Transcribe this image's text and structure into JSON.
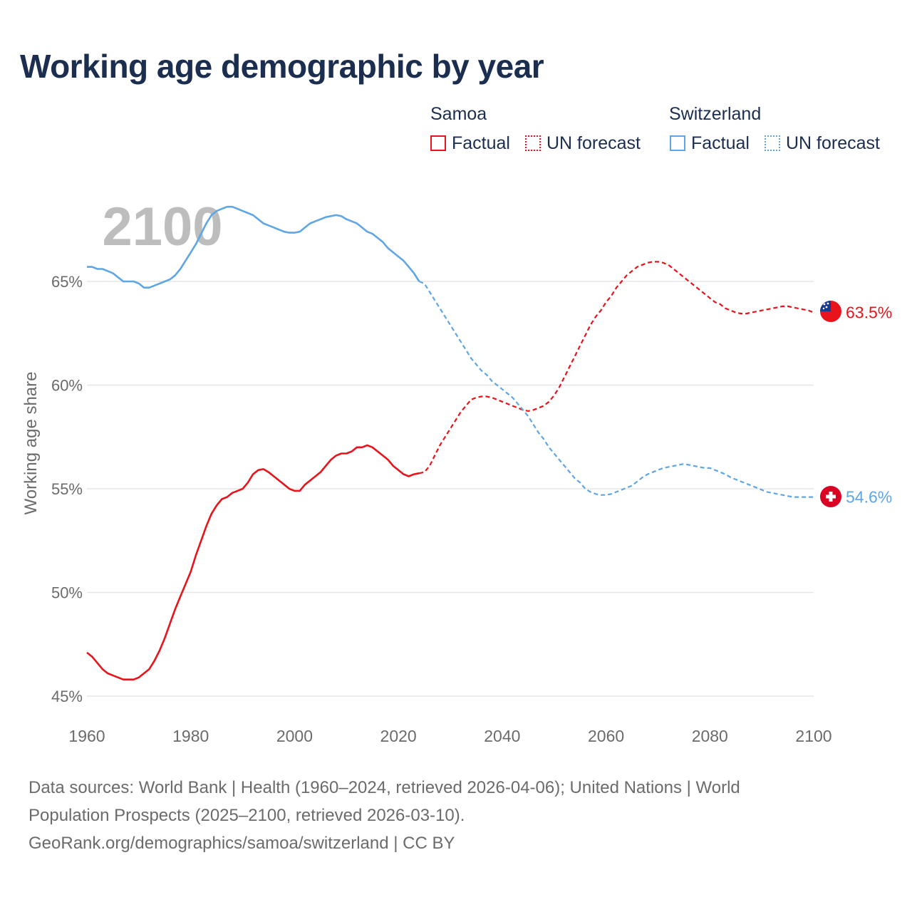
{
  "title": "Working age demographic by year",
  "legend": {
    "groups": [
      {
        "name": "Samoa",
        "color": "#e8141c",
        "items": [
          {
            "label": "Factual",
            "style": "solid"
          },
          {
            "label": "UN forecast",
            "style": "dotted"
          }
        ]
      },
      {
        "name": "Switzerland",
        "color": "#5fa6e4",
        "items": [
          {
            "label": "Factual",
            "style": "solid"
          },
          {
            "label": "UN forecast",
            "style": "dotted"
          }
        ]
      }
    ]
  },
  "year_label": "2100",
  "footer": {
    "line1": "Data sources: World Bank | Health (1960–2024, retrieved 2026-04-06); United Nations | World",
    "line2": "Population Prospects (2025–2100, retrieved 2026-03-10).",
    "line3": "GeoRank.org/demographics/samoa/switzerland | CC BY"
  },
  "chart_data": {
    "type": "line",
    "title": "Working age demographic by year",
    "xlabel": "",
    "ylabel": "Working age share",
    "xlim": [
      1960,
      2100
    ],
    "ylim": [
      45,
      70
    ],
    "x_ticks": [
      "1960",
      "1980",
      "2000",
      "2020",
      "2040",
      "2060",
      "2080",
      "2100"
    ],
    "y_ticks": [
      {
        "value": 45,
        "label": "45%"
      },
      {
        "value": 50,
        "label": "50%"
      },
      {
        "value": 55,
        "label": "55%"
      },
      {
        "value": 60,
        "label": "60%"
      },
      {
        "value": 65,
        "label": "65%"
      }
    ],
    "forecast_start": 2024,
    "series": [
      {
        "name": "Samoa",
        "color": "#e8141c",
        "end_label": "63.5%",
        "flag": "samoa-flag-icon",
        "points": [
          [
            1960,
            47.1
          ],
          [
            1961,
            46.9
          ],
          [
            1962,
            46.6
          ],
          [
            1963,
            46.3
          ],
          [
            1964,
            46.1
          ],
          [
            1965,
            46.0
          ],
          [
            1966,
            45.9
          ],
          [
            1967,
            45.8
          ],
          [
            1968,
            45.8
          ],
          [
            1969,
            45.8
          ],
          [
            1970,
            45.9
          ],
          [
            1971,
            46.1
          ],
          [
            1972,
            46.3
          ],
          [
            1973,
            46.7
          ],
          [
            1974,
            47.2
          ],
          [
            1975,
            47.8
          ],
          [
            1976,
            48.5
          ],
          [
            1977,
            49.2
          ],
          [
            1978,
            49.8
          ],
          [
            1979,
            50.4
          ],
          [
            1980,
            51.0
          ],
          [
            1981,
            51.8
          ],
          [
            1982,
            52.5
          ],
          [
            1983,
            53.2
          ],
          [
            1984,
            53.8
          ],
          [
            1985,
            54.2
          ],
          [
            1986,
            54.5
          ],
          [
            1987,
            54.6
          ],
          [
            1988,
            54.8
          ],
          [
            1989,
            54.9
          ],
          [
            1990,
            55.0
          ],
          [
            1991,
            55.3
          ],
          [
            1992,
            55.7
          ],
          [
            1993,
            55.9
          ],
          [
            1994,
            55.95
          ],
          [
            1995,
            55.8
          ],
          [
            1996,
            55.6
          ],
          [
            1997,
            55.4
          ],
          [
            1998,
            55.2
          ],
          [
            1999,
            55.0
          ],
          [
            2000,
            54.9
          ],
          [
            2001,
            54.9
          ],
          [
            2002,
            55.2
          ],
          [
            2003,
            55.4
          ],
          [
            2004,
            55.6
          ],
          [
            2005,
            55.8
          ],
          [
            2006,
            56.1
          ],
          [
            2007,
            56.4
          ],
          [
            2008,
            56.6
          ],
          [
            2009,
            56.7
          ],
          [
            2010,
            56.7
          ],
          [
            2011,
            56.8
          ],
          [
            2012,
            57.0
          ],
          [
            2013,
            57.0
          ],
          [
            2014,
            57.1
          ],
          [
            2015,
            57.0
          ],
          [
            2016,
            56.8
          ],
          [
            2017,
            56.6
          ],
          [
            2018,
            56.4
          ],
          [
            2019,
            56.1
          ],
          [
            2020,
            55.9
          ],
          [
            2021,
            55.7
          ],
          [
            2022,
            55.6
          ],
          [
            2023,
            55.7
          ],
          [
            2024,
            55.75
          ],
          [
            2025,
            55.8
          ],
          [
            2026,
            56.1
          ],
          [
            2027,
            56.6
          ],
          [
            2028,
            57.1
          ],
          [
            2029,
            57.5
          ],
          [
            2030,
            57.9
          ],
          [
            2031,
            58.3
          ],
          [
            2032,
            58.7
          ],
          [
            2033,
            59.0
          ],
          [
            2034,
            59.3
          ],
          [
            2035,
            59.4
          ],
          [
            2036,
            59.45
          ],
          [
            2037,
            59.45
          ],
          [
            2038,
            59.4
          ],
          [
            2039,
            59.3
          ],
          [
            2040,
            59.2
          ],
          [
            2041,
            59.1
          ],
          [
            2042,
            59.0
          ],
          [
            2043,
            58.9
          ],
          [
            2044,
            58.8
          ],
          [
            2045,
            58.75
          ],
          [
            2046,
            58.8
          ],
          [
            2047,
            58.9
          ],
          [
            2048,
            59.0
          ],
          [
            2049,
            59.2
          ],
          [
            2050,
            59.5
          ],
          [
            2051,
            59.9
          ],
          [
            2052,
            60.4
          ],
          [
            2053,
            60.9
          ],
          [
            2054,
            61.4
          ],
          [
            2055,
            61.9
          ],
          [
            2056,
            62.4
          ],
          [
            2057,
            62.9
          ],
          [
            2058,
            63.3
          ],
          [
            2059,
            63.6
          ],
          [
            2060,
            64.0
          ],
          [
            2061,
            64.3
          ],
          [
            2062,
            64.7
          ],
          [
            2063,
            65.0
          ],
          [
            2064,
            65.3
          ],
          [
            2065,
            65.5
          ],
          [
            2066,
            65.7
          ],
          [
            2067,
            65.8
          ],
          [
            2068,
            65.9
          ],
          [
            2069,
            65.95
          ],
          [
            2070,
            65.95
          ],
          [
            2071,
            65.9
          ],
          [
            2072,
            65.8
          ],
          [
            2073,
            65.6
          ],
          [
            2074,
            65.4
          ],
          [
            2075,
            65.2
          ],
          [
            2076,
            65.0
          ],
          [
            2077,
            64.8
          ],
          [
            2078,
            64.6
          ],
          [
            2079,
            64.4
          ],
          [
            2080,
            64.2
          ],
          [
            2081,
            64.0
          ],
          [
            2082,
            63.9
          ],
          [
            2083,
            63.7
          ],
          [
            2084,
            63.6
          ],
          [
            2085,
            63.5
          ],
          [
            2086,
            63.45
          ],
          [
            2087,
            63.45
          ],
          [
            2088,
            63.5
          ],
          [
            2089,
            63.55
          ],
          [
            2090,
            63.6
          ],
          [
            2091,
            63.65
          ],
          [
            2092,
            63.7
          ],
          [
            2093,
            63.75
          ],
          [
            2094,
            63.8
          ],
          [
            2095,
            63.8
          ],
          [
            2096,
            63.75
          ],
          [
            2097,
            63.7
          ],
          [
            2098,
            63.65
          ],
          [
            2099,
            63.6
          ],
          [
            2100,
            63.5
          ]
        ]
      },
      {
        "name": "Switzerland",
        "color": "#5fa6e4",
        "end_label": "54.6%",
        "flag": "switzerland-flag-icon",
        "points": [
          [
            1960,
            65.7
          ],
          [
            1961,
            65.7
          ],
          [
            1962,
            65.6
          ],
          [
            1963,
            65.6
          ],
          [
            1964,
            65.5
          ],
          [
            1965,
            65.4
          ],
          [
            1966,
            65.2
          ],
          [
            1967,
            65.0
          ],
          [
            1968,
            65.0
          ],
          [
            1969,
            65.0
          ],
          [
            1970,
            64.9
          ],
          [
            1971,
            64.7
          ],
          [
            1972,
            64.7
          ],
          [
            1973,
            64.8
          ],
          [
            1974,
            64.9
          ],
          [
            1975,
            65.0
          ],
          [
            1976,
            65.1
          ],
          [
            1977,
            65.3
          ],
          [
            1978,
            65.6
          ],
          [
            1979,
            66.0
          ],
          [
            1980,
            66.4
          ],
          [
            1981,
            66.8
          ],
          [
            1982,
            67.3
          ],
          [
            1983,
            67.8
          ],
          [
            1984,
            68.2
          ],
          [
            1985,
            68.4
          ],
          [
            1986,
            68.5
          ],
          [
            1987,
            68.6
          ],
          [
            1988,
            68.6
          ],
          [
            1989,
            68.5
          ],
          [
            1990,
            68.4
          ],
          [
            1991,
            68.3
          ],
          [
            1992,
            68.2
          ],
          [
            1993,
            68.0
          ],
          [
            1994,
            67.8
          ],
          [
            1995,
            67.7
          ],
          [
            1996,
            67.6
          ],
          [
            1997,
            67.5
          ],
          [
            1998,
            67.4
          ],
          [
            1999,
            67.35
          ],
          [
            2000,
            67.35
          ],
          [
            2001,
            67.4
          ],
          [
            2002,
            67.6
          ],
          [
            2003,
            67.8
          ],
          [
            2004,
            67.9
          ],
          [
            2005,
            68.0
          ],
          [
            2006,
            68.1
          ],
          [
            2007,
            68.15
          ],
          [
            2008,
            68.2
          ],
          [
            2009,
            68.15
          ],
          [
            2010,
            68.0
          ],
          [
            2011,
            67.9
          ],
          [
            2012,
            67.8
          ],
          [
            2013,
            67.6
          ],
          [
            2014,
            67.4
          ],
          [
            2015,
            67.3
          ],
          [
            2016,
            67.1
          ],
          [
            2017,
            66.9
          ],
          [
            2018,
            66.6
          ],
          [
            2019,
            66.4
          ],
          [
            2020,
            66.2
          ],
          [
            2021,
            66.0
          ],
          [
            2022,
            65.7
          ],
          [
            2023,
            65.4
          ],
          [
            2024,
            65.0
          ],
          [
            2025,
            64.9
          ],
          [
            2026,
            64.5
          ],
          [
            2027,
            64.1
          ],
          [
            2028,
            63.7
          ],
          [
            2029,
            63.3
          ],
          [
            2030,
            62.9
          ],
          [
            2031,
            62.5
          ],
          [
            2032,
            62.1
          ],
          [
            2033,
            61.7
          ],
          [
            2034,
            61.3
          ],
          [
            2035,
            61.0
          ],
          [
            2036,
            60.7
          ],
          [
            2037,
            60.5
          ],
          [
            2038,
            60.2
          ],
          [
            2039,
            60.0
          ],
          [
            2040,
            59.8
          ],
          [
            2041,
            59.6
          ],
          [
            2042,
            59.4
          ],
          [
            2043,
            59.1
          ],
          [
            2044,
            58.8
          ],
          [
            2045,
            58.5
          ],
          [
            2046,
            58.1
          ],
          [
            2047,
            57.7
          ],
          [
            2048,
            57.4
          ],
          [
            2049,
            57.0
          ],
          [
            2050,
            56.7
          ],
          [
            2051,
            56.4
          ],
          [
            2052,
            56.1
          ],
          [
            2053,
            55.8
          ],
          [
            2054,
            55.5
          ],
          [
            2055,
            55.3
          ],
          [
            2056,
            55.0
          ],
          [
            2057,
            54.85
          ],
          [
            2058,
            54.75
          ],
          [
            2059,
            54.7
          ],
          [
            2060,
            54.7
          ],
          [
            2061,
            54.75
          ],
          [
            2062,
            54.85
          ],
          [
            2063,
            54.95
          ],
          [
            2064,
            55.05
          ],
          [
            2065,
            55.15
          ],
          [
            2066,
            55.35
          ],
          [
            2067,
            55.55
          ],
          [
            2068,
            55.7
          ],
          [
            2069,
            55.8
          ],
          [
            2070,
            55.9
          ],
          [
            2071,
            56.0
          ],
          [
            2072,
            56.05
          ],
          [
            2073,
            56.1
          ],
          [
            2074,
            56.15
          ],
          [
            2075,
            56.2
          ],
          [
            2076,
            56.15
          ],
          [
            2077,
            56.1
          ],
          [
            2078,
            56.05
          ],
          [
            2079,
            56.0
          ],
          [
            2080,
            56.0
          ],
          [
            2081,
            55.9
          ],
          [
            2082,
            55.8
          ],
          [
            2083,
            55.7
          ],
          [
            2084,
            55.55
          ],
          [
            2085,
            55.45
          ],
          [
            2086,
            55.35
          ],
          [
            2087,
            55.25
          ],
          [
            2088,
            55.15
          ],
          [
            2089,
            55.05
          ],
          [
            2090,
            54.95
          ],
          [
            2091,
            54.85
          ],
          [
            2092,
            54.8
          ],
          [
            2093,
            54.75
          ],
          [
            2094,
            54.7
          ],
          [
            2095,
            54.65
          ],
          [
            2096,
            54.6
          ],
          [
            2097,
            54.6
          ],
          [
            2098,
            54.6
          ],
          [
            2099,
            54.6
          ],
          [
            2100,
            54.6
          ]
        ]
      }
    ]
  }
}
